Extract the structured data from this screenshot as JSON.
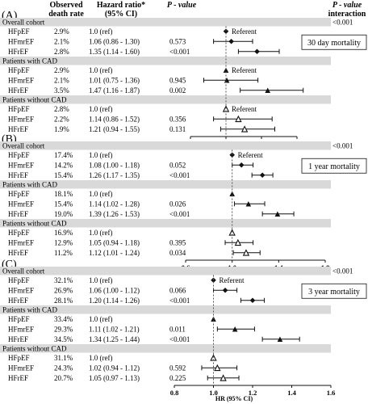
{
  "header": {
    "col_rate": [
      "Observed",
      "death rate"
    ],
    "col_hr": [
      "Hazard ratio*",
      "(95% CI)"
    ],
    "col_p": "P - value",
    "col_pint": [
      "P - value",
      "interaction"
    ]
  },
  "xlabel": "HR (95% CI)",
  "chart_data": [
    {
      "type": "forest",
      "panel_label": "(A)",
      "outcome": "30 day mortality",
      "p_interaction": "<0.001",
      "xlim": [
        0.6,
        1.8
      ],
      "xticks": [
        "0.6",
        "1.0",
        "1.4",
        "1.8"
      ],
      "reference_line": 1.0,
      "groups": [
        {
          "name": "Overall cohort",
          "marker": "filled-diamond",
          "rows": [
            {
              "label": "HFpEF",
              "rate": "2.9%",
              "hr_text": "1.0 (ref)",
              "p": "",
              "ref_label": "Referent",
              "hr": 1.0,
              "lo": null,
              "hi": null
            },
            {
              "label": "HFmrEF",
              "rate": "2.1%",
              "hr_text": "1.06 (0.86 - 1.30)",
              "p": "0.573",
              "hr": 1.06,
              "lo": 0.86,
              "hi": 1.3
            },
            {
              "label": "HFrEF",
              "rate": "2.8%",
              "hr_text": "1.35 (1.14 - 1.60)",
              "p": "<0.001",
              "hr": 1.35,
              "lo": 1.14,
              "hi": 1.6
            }
          ]
        },
        {
          "name": "Patients with CAD",
          "marker": "filled-triangle",
          "rows": [
            {
              "label": "HFpEF",
              "rate": "2.9%",
              "hr_text": "1.0 (ref)",
              "p": "",
              "ref_label": "Referent",
              "hr": 1.0,
              "lo": null,
              "hi": null
            },
            {
              "label": "HFmrEF",
              "rate": "2.1%",
              "hr_text": "1.01 (0.75 - 1.36)",
              "p": "0.945",
              "hr": 1.01,
              "lo": 0.75,
              "hi": 1.36
            },
            {
              "label": "HFrEF",
              "rate": "3.5%",
              "hr_text": "1.47 (1.16 - 1.87)",
              "p": "0.002",
              "hr": 1.47,
              "lo": 1.16,
              "hi": 1.87
            }
          ]
        },
        {
          "name": "Patients without CAD",
          "marker": "open-triangle",
          "rows": [
            {
              "label": "HFpEF",
              "rate": "2.8%",
              "hr_text": "1.0 (ref)",
              "p": "",
              "ref_label": "Referent",
              "hr": 1.0,
              "lo": null,
              "hi": null
            },
            {
              "label": "HFmrEF",
              "rate": "2.2%",
              "hr_text": "1.14 (0.86 - 1.52)",
              "p": "0.356",
              "hr": 1.14,
              "lo": 0.86,
              "hi": 1.52
            },
            {
              "label": "HFrEF",
              "rate": "1.9%",
              "hr_text": "1.21 (0.94 - 1.55)",
              "p": "0.131",
              "hr": 1.21,
              "lo": 0.94,
              "hi": 1.55
            }
          ]
        }
      ]
    },
    {
      "type": "forest",
      "panel_label": "(B)",
      "outcome": "1 year mortality",
      "p_interaction": "<0.001",
      "xlim": [
        0.6,
        1.8
      ],
      "xticks": [
        "0.6",
        "1.0",
        "1.4",
        "1.8"
      ],
      "reference_line": 1.0,
      "groups": [
        {
          "name": "Overall cohort",
          "marker": "filled-diamond",
          "rows": [
            {
              "label": "HFpEF",
              "rate": "17.4%",
              "hr_text": "1.0 (ref)",
              "p": "",
              "ref_label": "Referent",
              "hr": 1.0,
              "lo": null,
              "hi": null
            },
            {
              "label": "HFmrEF",
              "rate": "14.2%",
              "hr_text": "1.08 (1.00 - 1.18)",
              "p": "0.052",
              "hr": 1.08,
              "lo": 1.0,
              "hi": 1.18
            },
            {
              "label": "HFrEF",
              "rate": "15.4%",
              "hr_text": "1.26 (1.17 - 1.35)",
              "p": "<0.001",
              "hr": 1.26,
              "lo": 1.17,
              "hi": 1.35
            }
          ]
        },
        {
          "name": "Patients with CAD",
          "marker": "filled-triangle",
          "rows": [
            {
              "label": "HFpEF",
              "rate": "18.1%",
              "hr_text": "1.0 (ref)",
              "p": "",
              "hr": 1.0,
              "lo": null,
              "hi": null
            },
            {
              "label": "HFmrEF",
              "rate": "15.4%",
              "hr_text": "1.14 (1.02 - 1.28)",
              "p": "0.026",
              "hr": 1.14,
              "lo": 1.02,
              "hi": 1.28
            },
            {
              "label": "HFrEF",
              "rate": "19.0%",
              "hr_text": "1.39 (1.26 - 1.53)",
              "p": "<0.001",
              "hr": 1.39,
              "lo": 1.26,
              "hi": 1.53
            }
          ]
        },
        {
          "name": "Patients without CAD",
          "marker": "open-triangle",
          "rows": [
            {
              "label": "HFpEF",
              "rate": "16.9%",
              "hr_text": "1.0 (ref)",
              "p": "",
              "hr": 1.0,
              "lo": null,
              "hi": null
            },
            {
              "label": "HFmrEF",
              "rate": "12.9%",
              "hr_text": "1.05 (0.94 - 1.18)",
              "p": "0.395",
              "hr": 1.05,
              "lo": 0.94,
              "hi": 1.18
            },
            {
              "label": "HFrEF",
              "rate": "11.2%",
              "hr_text": "1.12 (1.01 - 1.24)",
              "p": "0.034",
              "hr": 1.12,
              "lo": 1.01,
              "hi": 1.24
            }
          ]
        }
      ]
    },
    {
      "type": "forest",
      "panel_label": "(C)",
      "outcome": "3 year mortality",
      "p_interaction": "<0.001",
      "xlim": [
        0.8,
        1.6
      ],
      "xticks": [
        "0.8",
        "1.0",
        "1.2",
        "1.4",
        "1.6"
      ],
      "reference_line": 1.0,
      "groups": [
        {
          "name": "Overall cohort",
          "marker": "filled-diamond",
          "rows": [
            {
              "label": "HFpEF",
              "rate": "32.1%",
              "hr_text": "1.0 (ref)",
              "p": "",
              "ref_label": "Referent",
              "hr": 1.0,
              "lo": null,
              "hi": null
            },
            {
              "label": "HFmrEF",
              "rate": "26.9%",
              "hr_text": "1.06 (1.00 - 1.12)",
              "p": "0.066",
              "hr": 1.06,
              "lo": 1.0,
              "hi": 1.12
            },
            {
              "label": "HFrEF",
              "rate": "28.1%",
              "hr_text": "1.20 (1.14 - 1.26)",
              "p": "<0.001",
              "hr": 1.2,
              "lo": 1.14,
              "hi": 1.26
            }
          ]
        },
        {
          "name": "Patients with CAD",
          "marker": "filled-triangle",
          "rows": [
            {
              "label": "HFpEF",
              "rate": "33.4%",
              "hr_text": "1.0 (ref)",
              "p": "",
              "hr": 1.0,
              "lo": null,
              "hi": null
            },
            {
              "label": "HFmrEF",
              "rate": "29.3%",
              "hr_text": "1.11 (1.02 - 1.21)",
              "p": "0.011",
              "hr": 1.11,
              "lo": 1.02,
              "hi": 1.21
            },
            {
              "label": "HFrEF",
              "rate": "34.5%",
              "hr_text": "1.34 (1.25 - 1.44)",
              "p": "<0.001",
              "hr": 1.34,
              "lo": 1.25,
              "hi": 1.44
            }
          ]
        },
        {
          "name": "Patients without CAD",
          "marker": "open-triangle",
          "rows": [
            {
              "label": "HFpEF",
              "rate": "31.1%",
              "hr_text": "1.0 (ref)",
              "p": "",
              "hr": 1.0,
              "lo": null,
              "hi": null
            },
            {
              "label": "HFmrEF",
              "rate": "24.3%",
              "hr_text": "1.02 (0.94 - 1.12)",
              "p": "0.592",
              "hr": 1.02,
              "lo": 0.94,
              "hi": 1.12
            },
            {
              "label": "HFrEF",
              "rate": "20.7%",
              "hr_text": "1.05 (0.97 - 1.13)",
              "p": "0.225",
              "hr": 1.05,
              "lo": 0.97,
              "hi": 1.13
            }
          ]
        }
      ]
    }
  ],
  "colors": {
    "group_band": "#d9d9d9",
    "ink": "#111111",
    "reference_line": "#555555"
  }
}
